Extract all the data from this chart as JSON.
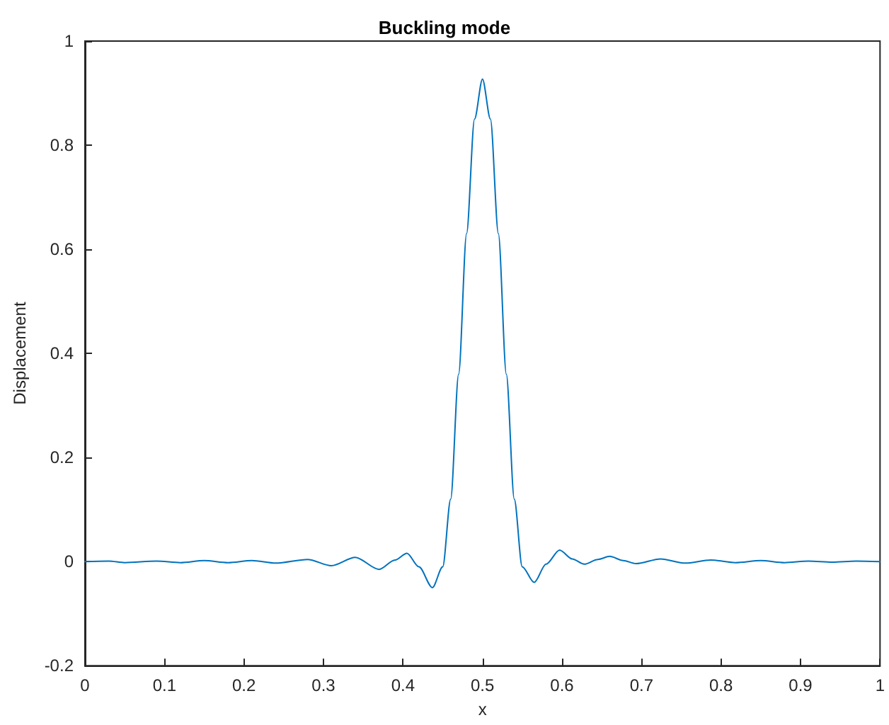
{
  "chart_data": {
    "type": "line",
    "title": "Buckling mode",
    "xlabel": "x",
    "ylabel": "Displacement",
    "xlim": [
      0,
      1
    ],
    "xticks": [
      0,
      0.1,
      0.2,
      0.3,
      0.4,
      0.5,
      0.6,
      0.7,
      0.8,
      0.9,
      1
    ],
    "ylim": [
      -0.2,
      1
    ],
    "yticks": [
      -0.2,
      0,
      0.2,
      0.4,
      0.6,
      0.8,
      1
    ],
    "grid": false,
    "series": [
      {
        "color": "#0072bd",
        "x": [
          0,
          0.03,
          0.05,
          0.09,
          0.12,
          0.15,
          0.18,
          0.21,
          0.24,
          0.28,
          0.31,
          0.34,
          0.37,
          0.39,
          0.405,
          0.42,
          0.437,
          0.45,
          0.46,
          0.47,
          0.48,
          0.49,
          0.5,
          0.51,
          0.52,
          0.53,
          0.54,
          0.55,
          0.565,
          0.58,
          0.597,
          0.613,
          0.628,
          0.645,
          0.66,
          0.677,
          0.693,
          0.724,
          0.755,
          0.787,
          0.818,
          0.85,
          0.88,
          0.91,
          0.94,
          0.97,
          1
        ],
        "values": [
          0,
          0.001,
          -0.002,
          0.001,
          -0.002,
          0.002,
          -0.002,
          0.002,
          -0.003,
          0.004,
          -0.008,
          0.008,
          -0.015,
          0.003,
          0.016,
          -0.01,
          -0.05,
          -0.01,
          0.12,
          0.36,
          0.63,
          0.85,
          0.927,
          0.85,
          0.63,
          0.36,
          0.12,
          -0.01,
          -0.04,
          -0.005,
          0.022,
          0.005,
          -0.005,
          0.004,
          0.01,
          0.002,
          -0.004,
          0.005,
          -0.003,
          0.003,
          -0.002,
          0.002,
          -0.002,
          0.001,
          -0.001,
          0.001,
          0
        ]
      }
    ]
  }
}
